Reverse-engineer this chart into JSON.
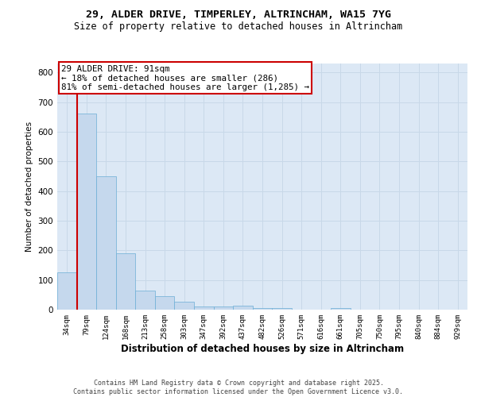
{
  "title_line1": "29, ALDER DRIVE, TIMPERLEY, ALTRINCHAM, WA15 7YG",
  "title_line2": "Size of property relative to detached houses in Altrincham",
  "xlabel": "Distribution of detached houses by size in Altrincham",
  "ylabel": "Number of detached properties",
  "categories": [
    "34sqm",
    "79sqm",
    "124sqm",
    "168sqm",
    "213sqm",
    "258sqm",
    "303sqm",
    "347sqm",
    "392sqm",
    "437sqm",
    "482sqm",
    "526sqm",
    "571sqm",
    "616sqm",
    "661sqm",
    "705sqm",
    "750sqm",
    "795sqm",
    "840sqm",
    "884sqm",
    "929sqm"
  ],
  "values": [
    125,
    660,
    450,
    190,
    63,
    45,
    27,
    10,
    12,
    13,
    5,
    5,
    0,
    0,
    5,
    0,
    0,
    0,
    0,
    0,
    0
  ],
  "bar_color": "#c5d8ed",
  "bar_edge_color": "#6baed6",
  "grid_color": "#c8d8e8",
  "background_color": "#dce8f5",
  "vline_color": "#cc0000",
  "annotation_text": "29 ALDER DRIVE: 91sqm\n← 18% of detached houses are smaller (286)\n81% of semi-detached houses are larger (1,285) →",
  "annotation_box_color": "#cc0000",
  "ylim": [
    0,
    830
  ],
  "yticks": [
    0,
    100,
    200,
    300,
    400,
    500,
    600,
    700,
    800
  ],
  "footer_line1": "Contains HM Land Registry data © Crown copyright and database right 2025.",
  "footer_line2": "Contains public sector information licensed under the Open Government Licence v3.0."
}
